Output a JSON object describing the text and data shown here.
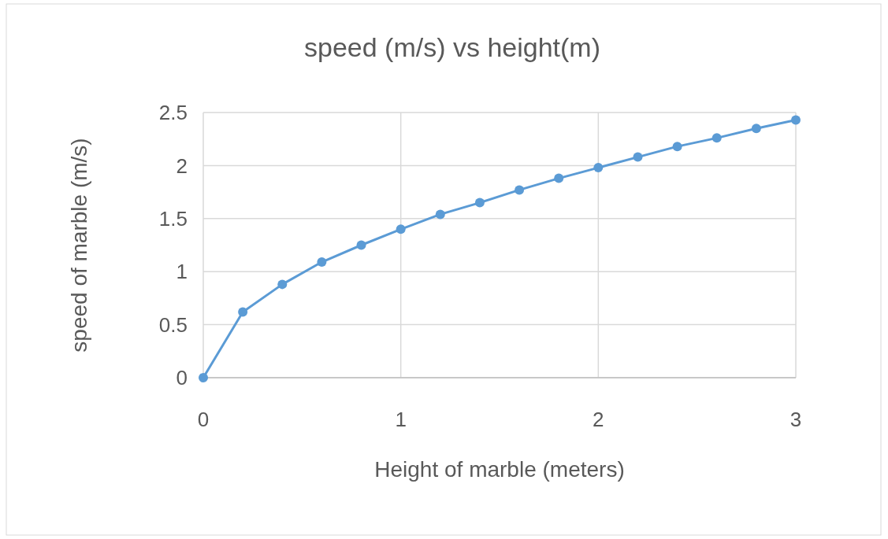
{
  "chart_data": {
    "type": "line",
    "title": "speed (m/s) vs height(m)",
    "xlabel": "Height of marble (meters)",
    "ylabel": "speed of marble (m/s)",
    "x": [
      0,
      0.2,
      0.4,
      0.6,
      0.8,
      1,
      1.2,
      1.4,
      1.6,
      1.8,
      2,
      2.2,
      2.4,
      2.6,
      2.8,
      3
    ],
    "series": [
      {
        "color": "#5b9bd5",
        "values": [
          0,
          0.62,
          0.88,
          1.09,
          1.25,
          1.4,
          1.54,
          1.65,
          1.77,
          1.88,
          1.98,
          2.08,
          2.18,
          2.26,
          2.35,
          2.43
        ]
      }
    ],
    "xlim": [
      0,
      3
    ],
    "xticks": [
      0,
      1,
      2,
      3
    ],
    "ylim": [
      0,
      2.5
    ],
    "yticks": [
      0,
      0.5,
      1,
      1.5,
      2,
      2.5
    ],
    "grid": true,
    "marker": "circle",
    "line_style": "solid"
  }
}
